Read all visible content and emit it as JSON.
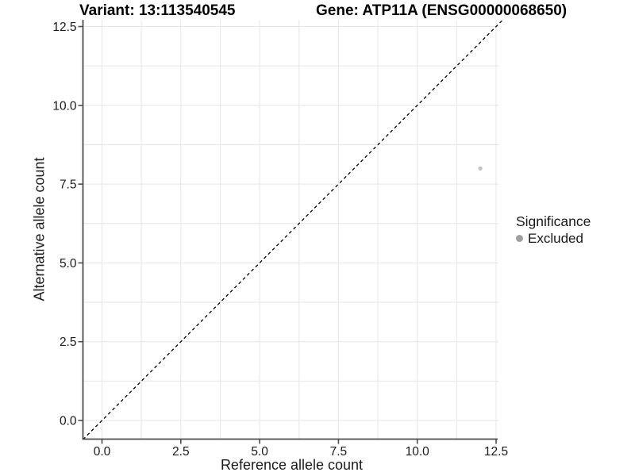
{
  "title": {
    "variant": "Variant: 13:113540545",
    "gene": "Gene: ATP11A (ENSG00000068650)"
  },
  "axes": {
    "x_label": "Reference allele count",
    "y_label": "Alternative allele count"
  },
  "legend": {
    "title": "Significance",
    "entries": [
      {
        "label": "Excluded",
        "color": "#a0a0a0"
      }
    ]
  },
  "colors": {
    "background": "#ffffff",
    "grid": "#e6e6e6",
    "axis": "#4d4d4d",
    "text": "#1a1a1a",
    "title": "#000000"
  },
  "chart_data": {
    "type": "scatter",
    "title": "Variant: 13:113540545 — Gene: ATP11A (ENSG00000068650)",
    "xlabel": "Reference allele count",
    "ylabel": "Alternative allele count",
    "xlim": [
      -0.6,
      12.7
    ],
    "ylim": [
      -0.6,
      12.7
    ],
    "x_ticks": [
      0,
      2.5,
      5,
      7.5,
      10,
      12.5
    ],
    "x_tick_labels": [
      "0.0",
      "2.5",
      "5.0",
      "7.5",
      "10.0",
      "12.5"
    ],
    "y_ticks": [
      0,
      2.5,
      5,
      7.5,
      10,
      12.5
    ],
    "y_tick_labels": [
      "0.0",
      "2.5",
      "5.0",
      "7.5",
      "10.0",
      "12.5"
    ],
    "grid": true,
    "minor_grid_step": 1.25,
    "identity_line": {
      "style": "dashed",
      "color": "#000000",
      "equation": "y = x"
    },
    "series": [
      {
        "name": "Excluded",
        "color": "#c4c4c4",
        "points": [
          {
            "x": 12,
            "y": 8
          }
        ]
      }
    ],
    "legend_title": "Significance",
    "legend_position": "right"
  }
}
